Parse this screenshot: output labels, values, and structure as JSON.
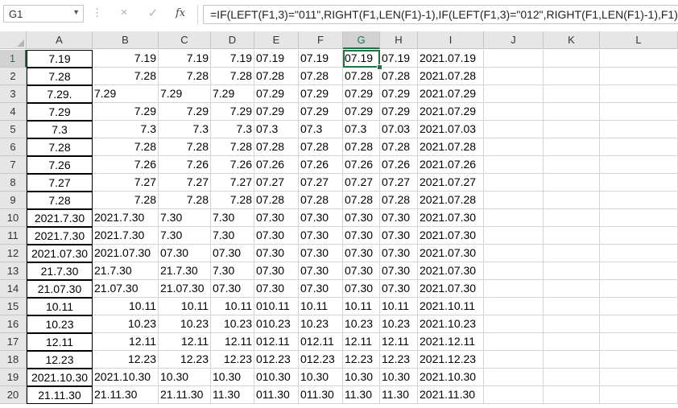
{
  "name_box": "G1",
  "formula_bar": {
    "cancel_icon": "×",
    "enter_icon": "✓",
    "fx_label": "fx",
    "formula": "=IF(LEFT(F1,3)=\"011\",RIGHT(F1,LEN(F1)-1),IF(LEFT(F1,3)=\"012\",RIGHT(F1,LEN(F1)-1),F1))"
  },
  "columns": [
    "A",
    "B",
    "C",
    "D",
    "E",
    "F",
    "G",
    "H",
    "I",
    "J",
    "K",
    "L"
  ],
  "rows": [
    [
      "7.19",
      "7.19",
      "7.19",
      "7.19",
      "07.19",
      "07.19",
      "07.19",
      "07.19",
      "2021.07.19"
    ],
    [
      "7.28",
      "7.28",
      "7.28",
      "7.28",
      "07.28",
      "07.28",
      "07.28",
      "07.28",
      "2021.07.28"
    ],
    [
      "7.29.",
      "7.29",
      "7.29",
      "7.29",
      "07.29",
      "07.29",
      "07.29",
      "07.29",
      "2021.07.29"
    ],
    [
      "7.29",
      "7.29",
      "7.29",
      "7.29",
      "07.29",
      "07.29",
      "07.29",
      "07.29",
      "2021.07.29"
    ],
    [
      "7.3",
      "7.3",
      "7.3",
      "7.3",
      "07.3",
      "07.3",
      "07.3",
      "07.03",
      "2021.07.03"
    ],
    [
      "7.28",
      "7.28",
      "7.28",
      "7.28",
      "07.28",
      "07.28",
      "07.28",
      "07.28",
      "2021.07.28"
    ],
    [
      "7.26",
      "7.26",
      "7.26",
      "7.26",
      "07.26",
      "07.26",
      "07.26",
      "07.26",
      "2021.07.26"
    ],
    [
      "7.27",
      "7.27",
      "7.27",
      "7.27",
      "07.27",
      "07.27",
      "07.27",
      "07.27",
      "2021.07.27"
    ],
    [
      "7.28",
      "7.28",
      "7.28",
      "7.28",
      "07.28",
      "07.28",
      "07.28",
      "07.28",
      "2021.07.28"
    ],
    [
      "2021.7.30",
      "2021.7.30",
      "7.30",
      "7.30",
      "07.30",
      "07.30",
      "07.30",
      "07.30",
      "2021.07.30"
    ],
    [
      "2021.7.30",
      "2021.7.30",
      "7.30",
      "7.30",
      "07.30",
      "07.30",
      "07.30",
      "07.30",
      "2021.07.30"
    ],
    [
      "2021.07.30",
      "2021.07.30",
      "07.30",
      "07.30",
      "07.30",
      "07.30",
      "07.30",
      "07.30",
      "2021.07.30"
    ],
    [
      "21.7.30",
      "21.7.30",
      "21.7.30",
      "7.30",
      "07.30",
      "07.30",
      "07.30",
      "07.30",
      "2021.07.30"
    ],
    [
      "21.07.30",
      "21.07.30",
      "21.07.30",
      "07.30",
      "07.30",
      "07.30",
      "07.30",
      "07.30",
      "2021.07.30"
    ],
    [
      "10.11",
      "10.11",
      "10.11",
      "10.11",
      "010.11",
      "10.11",
      "10.11",
      "10.11",
      "2021.10.11"
    ],
    [
      "10.23",
      "10.23",
      "10.23",
      "10.23",
      "010.23",
      "10.23",
      "10.23",
      "10.23",
      "2021.10.23"
    ],
    [
      "12.11",
      "12.11",
      "12.11",
      "12.11",
      "012.11",
      "012.11",
      "12.11",
      "12.11",
      "2021.12.11"
    ],
    [
      "12.23",
      "12.23",
      "12.23",
      "12.23",
      "012.23",
      "012.23",
      "12.23",
      "12.23",
      "2021.12.23"
    ],
    [
      "2021.10.30",
      "2021.10.30",
      "10.30",
      "10.30",
      "010.30",
      "10.30",
      "10.30",
      "10.30",
      "2021.10.30"
    ],
    [
      "21.11.30",
      "21.11.30",
      "21.11.30",
      "11.30",
      "011.30",
      "011.30",
      "11.30",
      "11.30",
      "2021.11.30"
    ]
  ],
  "alignments": [
    [
      "c",
      "r",
      "r",
      "r",
      "l",
      "l",
      "l",
      "l",
      "l"
    ],
    [
      "c",
      "r",
      "r",
      "r",
      "l",
      "l",
      "l",
      "l",
      "l"
    ],
    [
      "c",
      "l",
      "l",
      "l",
      "l",
      "l",
      "l",
      "l",
      "l"
    ],
    [
      "c",
      "r",
      "r",
      "r",
      "l",
      "l",
      "l",
      "l",
      "l"
    ],
    [
      "c",
      "r",
      "r",
      "r",
      "l",
      "l",
      "l",
      "l",
      "l"
    ],
    [
      "c",
      "r",
      "r",
      "r",
      "l",
      "l",
      "l",
      "l",
      "l"
    ],
    [
      "c",
      "r",
      "r",
      "r",
      "l",
      "l",
      "l",
      "l",
      "l"
    ],
    [
      "c",
      "r",
      "r",
      "r",
      "l",
      "l",
      "l",
      "l",
      "l"
    ],
    [
      "c",
      "r",
      "r",
      "r",
      "l",
      "l",
      "l",
      "l",
      "l"
    ],
    [
      "c",
      "l",
      "l",
      "l",
      "l",
      "l",
      "l",
      "l",
      "l"
    ],
    [
      "c",
      "l",
      "l",
      "l",
      "l",
      "l",
      "l",
      "l",
      "l"
    ],
    [
      "c",
      "l",
      "l",
      "l",
      "l",
      "l",
      "l",
      "l",
      "l"
    ],
    [
      "c",
      "l",
      "l",
      "l",
      "l",
      "l",
      "l",
      "l",
      "l"
    ],
    [
      "c",
      "l",
      "l",
      "l",
      "l",
      "l",
      "l",
      "l",
      "l"
    ],
    [
      "c",
      "r",
      "r",
      "r",
      "l",
      "l",
      "l",
      "l",
      "l"
    ],
    [
      "c",
      "r",
      "r",
      "r",
      "l",
      "l",
      "l",
      "l",
      "l"
    ],
    [
      "c",
      "r",
      "r",
      "r",
      "l",
      "l",
      "l",
      "l",
      "l"
    ],
    [
      "c",
      "r",
      "r",
      "r",
      "l",
      "l",
      "l",
      "l",
      "l"
    ],
    [
      "c",
      "l",
      "l",
      "l",
      "l",
      "l",
      "l",
      "l",
      "l"
    ],
    [
      "c",
      "l",
      "l",
      "l",
      "l",
      "l",
      "l",
      "l",
      "l"
    ]
  ],
  "selected_column": "G",
  "selected_row": 1,
  "accent_color": "#217346"
}
